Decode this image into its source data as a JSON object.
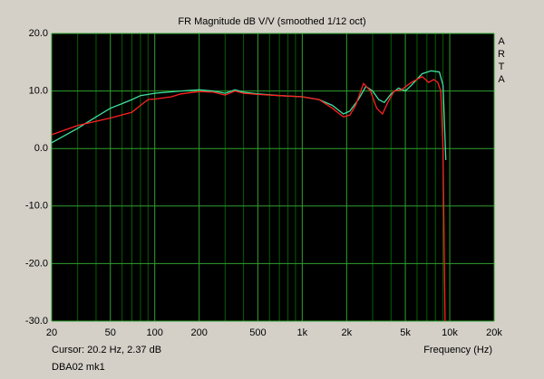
{
  "chart_data": {
    "type": "line",
    "title": "FR Magnitude dB V/V (smoothed 1/12 oct)",
    "brand": [
      "A",
      "R",
      "T",
      "A"
    ],
    "cursor": "Cursor: 20.2 Hz, 2.37 dB",
    "x_label": "Frequency (Hz)",
    "footer": "DBA02 mk1",
    "xscale": "log",
    "grid": true,
    "xlim": [
      20,
      20000
    ],
    "ylim": [
      -30,
      20
    ],
    "xticks": [
      20,
      50,
      100,
      200,
      500,
      {
        "value": 1000,
        "label": "1k"
      },
      {
        "value": 2000,
        "label": "2k"
      },
      {
        "value": 5000,
        "label": "5k"
      },
      {
        "value": 10000,
        "label": "10k"
      },
      {
        "value": 20000,
        "label": "20k"
      }
    ],
    "minor_xticks": [
      30,
      40,
      60,
      70,
      80,
      90,
      300,
      400,
      600,
      700,
      800,
      900,
      3000,
      4000,
      6000,
      7000,
      8000,
      9000
    ],
    "yticks": [
      {
        "value": 20,
        "label": "20.0"
      },
      {
        "value": 10,
        "label": "10.0"
      },
      {
        "value": 0,
        "label": "0.0"
      },
      {
        "value": -10,
        "label": "-10.0"
      },
      {
        "value": -20,
        "label": "-20.0"
      },
      {
        "value": -30,
        "label": "-30.0"
      }
    ],
    "series": [
      {
        "color": "#40e0a0",
        "x": [
          20,
          30,
          40,
          50,
          60,
          70,
          80,
          100,
          150,
          200,
          250,
          300,
          350,
          400,
          500,
          700,
          1000,
          1300,
          1600,
          1900,
          2100,
          2400,
          2700,
          3000,
          3300,
          3600,
          4000,
          4500,
          5000,
          5500,
          6500,
          7500,
          8500,
          9000,
          9200,
          9400
        ],
        "values": [
          1.0,
          3.5,
          5.5,
          7,
          7.8,
          8.5,
          9.2,
          9.6,
          10,
          10.2,
          10,
          9.6,
          10.2,
          9.8,
          9.5,
          9.2,
          9.0,
          8.5,
          7.5,
          6,
          6.5,
          8.5,
          10.8,
          10,
          8.5,
          8,
          9.5,
          10.5,
          10,
          11,
          13,
          13.5,
          13.3,
          11,
          5,
          -2
        ]
      },
      {
        "color": "#ff2020",
        "x": [
          20,
          30,
          50,
          70,
          80,
          90,
          100,
          130,
          150,
          200,
          250,
          300,
          350,
          400,
          500,
          700,
          1000,
          1300,
          1600,
          1900,
          2100,
          2300,
          2600,
          2900,
          3200,
          3500,
          3800,
          4200,
          4700,
          5500,
          6500,
          7200,
          7800,
          8300,
          8700,
          9000,
          9200,
          9300
        ],
        "values": [
          2.4,
          4,
          5.3,
          6.3,
          7.5,
          8.5,
          8.6,
          9,
          9.5,
          9.9,
          9.8,
          9.3,
          10,
          9.6,
          9.4,
          9.2,
          9,
          8.5,
          7,
          5.5,
          5.8,
          7.5,
          11.3,
          10,
          7,
          6,
          8,
          10,
          10.2,
          11.5,
          12.5,
          11.5,
          12,
          11.5,
          10,
          0,
          -20,
          -30
        ]
      }
    ]
  }
}
